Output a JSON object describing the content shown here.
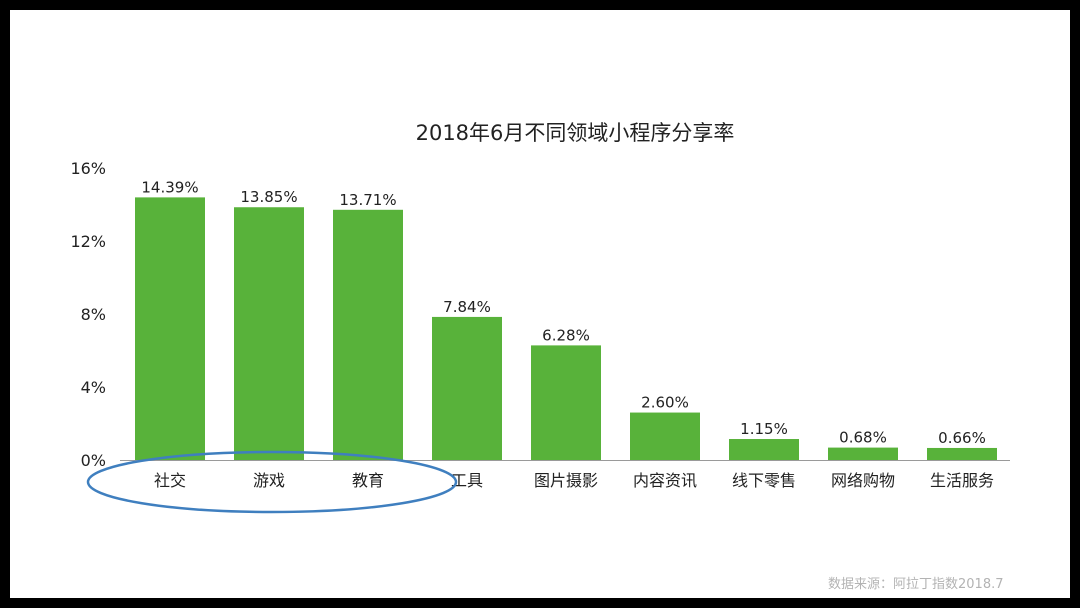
{
  "chart_data": {
    "type": "bar",
    "title": "2018年6月不同领域小程序分享率",
    "categories": [
      "社交",
      "游戏",
      "教育",
      "工具",
      "图片摄影",
      "内容资讯",
      "线下零售",
      "网络购物",
      "生活服务"
    ],
    "values": [
      14.39,
      13.85,
      13.71,
      7.84,
      6.28,
      2.6,
      1.15,
      0.68,
      0.66
    ],
    "value_labels": [
      "14.39%",
      "13.85%",
      "13.71%",
      "7.84%",
      "6.28%",
      "2.60%",
      "1.15%",
      "0.68%",
      "0.66%"
    ],
    "y_ticks": [
      0,
      4,
      8,
      12,
      16
    ],
    "y_tick_labels": [
      "0%",
      "4%",
      "8%",
      "12%",
      "16%"
    ],
    "ylim": [
      0,
      16
    ],
    "xlabel": "",
    "ylabel": "",
    "grid": false,
    "bar_color": "#58b23a",
    "highlight": {
      "shape": "ellipse",
      "color": "#3f7fbf",
      "categories": [
        "社交",
        "游戏",
        "教育"
      ]
    }
  },
  "source_note": "数据来源：阿拉丁指数2018.7"
}
